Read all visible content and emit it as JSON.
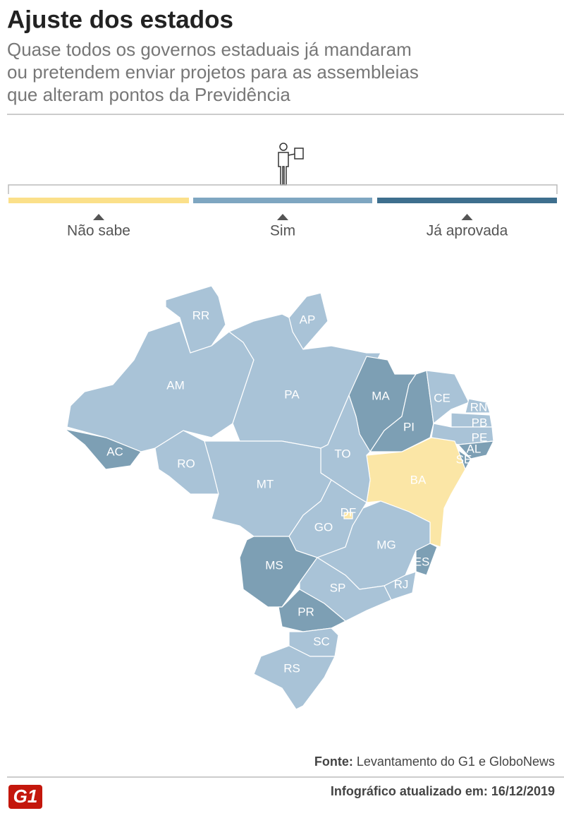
{
  "header": {
    "title": "Ajuste dos estados",
    "subtitle": [
      "Quase todos os governos estaduais já mandaram",
      "ou pretendem enviar projetos para as assembleias",
      "que alteram pontos da Previdência"
    ]
  },
  "legend": [
    {
      "label": "Não sabe",
      "bar_color": "#fbe08a",
      "map_color": "#fbe6a6"
    },
    {
      "label": "Sim",
      "bar_color": "#7ea6c1",
      "map_color": "#a9c3d7"
    },
    {
      "label": "Já aprovada",
      "bar_color": "#3e6f8e",
      "map_color": "#7d9fb4"
    }
  ],
  "map": {
    "states": [
      {
        "label": "RR",
        "category": 1
      },
      {
        "label": "AP",
        "category": 1
      },
      {
        "label": "AM",
        "category": 1
      },
      {
        "label": "PA",
        "category": 1
      },
      {
        "label": "MA",
        "category": 2
      },
      {
        "label": "PI",
        "category": 2
      },
      {
        "label": "CE",
        "category": 1
      },
      {
        "label": "RN",
        "category": 1
      },
      {
        "label": "PB",
        "category": 1
      },
      {
        "label": "PE",
        "category": 1
      },
      {
        "label": "AL",
        "category": 2
      },
      {
        "label": "SE",
        "category": 2
      },
      {
        "label": "BA",
        "category": 0
      },
      {
        "label": "TO",
        "category": 1
      },
      {
        "label": "AC",
        "category": 2
      },
      {
        "label": "RO",
        "category": 1
      },
      {
        "label": "MT",
        "category": 1
      },
      {
        "label": "GO",
        "category": 1
      },
      {
        "label": "DF",
        "category": 0
      },
      {
        "label": "MS",
        "category": 2
      },
      {
        "label": "MG",
        "category": 1
      },
      {
        "label": "ES",
        "category": 2
      },
      {
        "label": "RJ",
        "category": 1
      },
      {
        "label": "SP",
        "category": 1
      },
      {
        "label": "PR",
        "category": 2
      },
      {
        "label": "SC",
        "category": 1
      },
      {
        "label": "RS",
        "category": 1
      }
    ]
  },
  "source": {
    "label": "Fonte:",
    "text": "Levantamento do G1 e GloboNews"
  },
  "footer": {
    "logo": "G1",
    "updated": "Infográfico atualizado em: 16/12/2019"
  }
}
